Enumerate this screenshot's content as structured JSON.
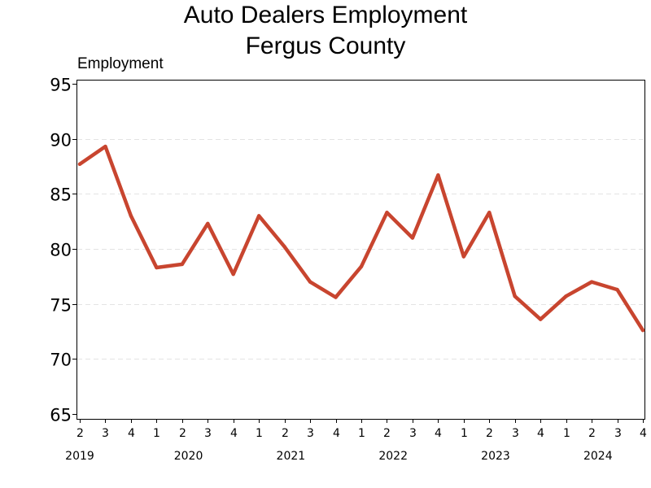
{
  "chart_data": {
    "type": "line",
    "title": "Auto Dealers Employment",
    "subtitle": "Fergus County",
    "ylabel": "Employment",
    "xlabel": "",
    "ylim": [
      65,
      95
    ],
    "yticks": [
      65,
      70,
      75,
      80,
      85,
      90,
      95
    ],
    "grid": true,
    "x_quarters": [
      "2",
      "3",
      "4",
      "1",
      "2",
      "3",
      "4",
      "1",
      "2",
      "3",
      "4",
      "1",
      "2",
      "3",
      "4",
      "1",
      "2",
      "3",
      "4",
      "1",
      "2",
      "3",
      "4"
    ],
    "years": [
      {
        "label": "2019",
        "start": 0
      },
      {
        "label": "2020",
        "start": 3
      },
      {
        "label": "2021",
        "start": 7
      },
      {
        "label": "2022",
        "start": 11
      },
      {
        "label": "2023",
        "start": 15
      },
      {
        "label": "2024",
        "start": 19
      }
    ],
    "series": [
      {
        "color": "#c8452f",
        "values": [
          87.7,
          89.3,
          83.0,
          78.3,
          78.6,
          82.3,
          77.7,
          83.0,
          80.2,
          77.0,
          75.6,
          78.4,
          83.3,
          81.0,
          86.7,
          79.3,
          83.3,
          75.7,
          73.6,
          75.7,
          77.0,
          76.3,
          72.6
        ]
      }
    ]
  }
}
